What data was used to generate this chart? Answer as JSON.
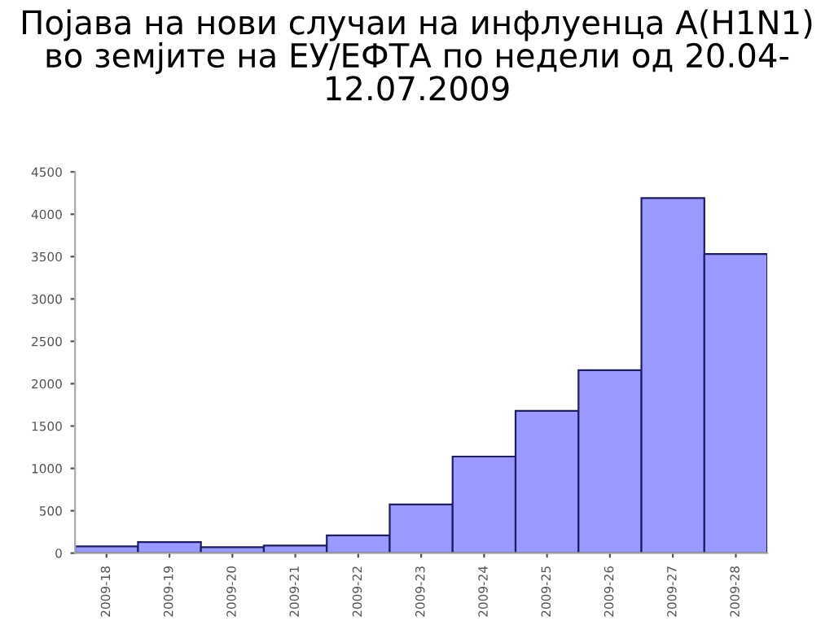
{
  "chart_data": {
    "type": "bar",
    "title": "Појава на нови случаи на инфлуенца A(H1N1)\nво земјите на ЕУ/ЕФТА по недели од 20.04-\n12.07.2009",
    "categories": [
      "2009-18",
      "2009-19",
      "2009-20",
      "2009-21",
      "2009-22",
      "2009-23",
      "2009-24",
      "2009-25",
      "2009-26",
      "2009-27",
      "2009-28"
    ],
    "values": [
      80,
      130,
      70,
      90,
      210,
      575,
      1140,
      1680,
      2160,
      4190,
      3530
    ],
    "color": "#9999ff",
    "ylim": [
      0,
      4500
    ],
    "yticks": [
      0,
      500,
      1000,
      1500,
      2000,
      2500,
      3000,
      3500,
      4000,
      4500
    ],
    "grid": false
  }
}
